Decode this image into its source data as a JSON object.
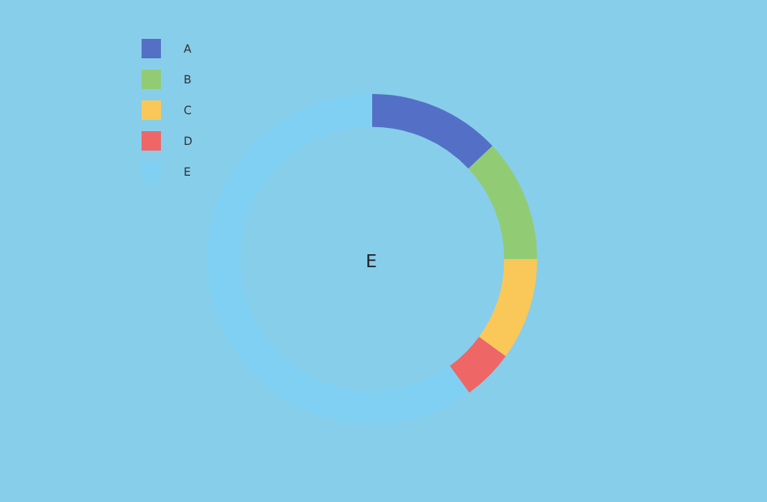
{
  "chart_data": {
    "type": "donut",
    "categories": [
      "A",
      "B",
      "C",
      "D",
      "E"
    ],
    "values": [
      13,
      12,
      10,
      5,
      60
    ],
    "colors": [
      "#5470c6",
      "#91cc75",
      "#fac858",
      "#ee6666",
      "#7fd0f2"
    ],
    "legend": "top left",
    "annotations": [
      "E"
    ]
  }
}
